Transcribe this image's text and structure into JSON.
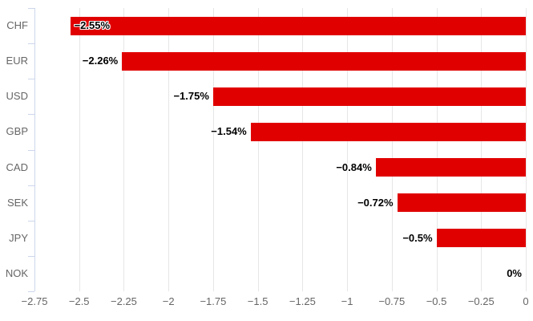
{
  "chart_data": {
    "type": "bar",
    "orientation": "horizontal",
    "title": "",
    "xlabel": "",
    "ylabel": "",
    "categories": [
      "CHF",
      "EUR",
      "USD",
      "GBP",
      "CAD",
      "SEK",
      "JPY",
      "NOK"
    ],
    "values": [
      -2.55,
      -2.26,
      -1.75,
      -1.54,
      -0.84,
      -0.72,
      -0.5,
      0
    ],
    "data_labels": [
      "−2.55%",
      "−2.26%",
      "−1.75%",
      "−1.54%",
      "−0.84%",
      "−0.72%",
      "−0.5%",
      "0%"
    ],
    "xlim": [
      -2.75,
      0
    ],
    "x_ticks": [
      -2.75,
      -2.5,
      -2.25,
      -2,
      -1.75,
      -1.5,
      -1.25,
      -1,
      -0.75,
      -0.5,
      -0.25,
      0
    ],
    "x_tick_labels": [
      "−2.75",
      "−2.5",
      "−2.25",
      "−2",
      "−1.75",
      "−1.5",
      "−1.25",
      "−1",
      "−0.75",
      "−0.5",
      "−0.25",
      "0"
    ],
    "grid": true,
    "legend": false,
    "colors": {
      "bar": "#e00000",
      "grid": "#e6e6e6",
      "axis_line": "#ccd6eb",
      "tick_label": "#666666",
      "data_label": "#000000",
      "background": "#ffffff"
    }
  }
}
